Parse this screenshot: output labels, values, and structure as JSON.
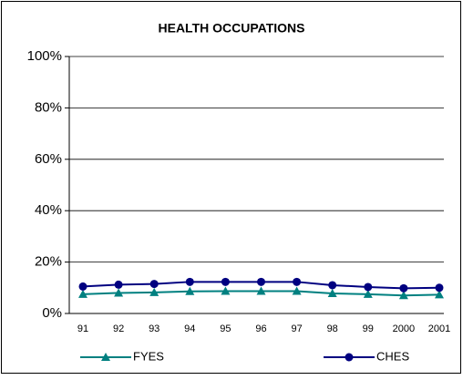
{
  "chart_data": {
    "type": "line",
    "title": "HEALTH OCCUPATIONS",
    "categories": [
      "91",
      "92",
      "93",
      "94",
      "95",
      "96",
      "97",
      "98",
      "99",
      "2000",
      "2001"
    ],
    "series": [
      {
        "name": "FYES",
        "color": "#008080",
        "marker": "triangle",
        "values": [
          7.5,
          8,
          8.2,
          8.6,
          8.7,
          8.7,
          8.7,
          7.8,
          7.5,
          7,
          7.3
        ]
      },
      {
        "name": "CHES",
        "color": "#000080",
        "marker": "circle",
        "values": [
          10.5,
          11.2,
          11.5,
          12.3,
          12.3,
          12.3,
          12.3,
          11,
          10.3,
          9.8,
          10
        ]
      }
    ],
    "ylim": [
      0,
      100
    ],
    "yticks": [
      {
        "value": 0,
        "label": "0%"
      },
      {
        "value": 20,
        "label": "20%"
      },
      {
        "value": 40,
        "label": "40%"
      },
      {
        "value": 60,
        "label": "60%"
      },
      {
        "value": 80,
        "label": "80%"
      },
      {
        "value": 100,
        "label": "100%"
      }
    ],
    "grid": true,
    "legend": "bottom"
  }
}
